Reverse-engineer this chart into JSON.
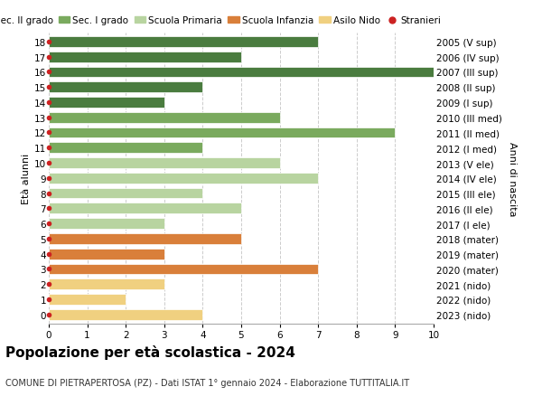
{
  "title": "Popolazione per età scolastica - 2024",
  "subtitle": "COMUNE DI PIETRAPERTOSA (PZ) - Dati ISTAT 1° gennaio 2024 - Elaborazione TUTTITALIA.IT",
  "xlabel_left": "Età alunni",
  "xlabel_right": "Anni di nascita",
  "xlim": [
    0,
    10
  ],
  "xticks": [
    0,
    1,
    2,
    3,
    4,
    5,
    6,
    7,
    8,
    9,
    10
  ],
  "ages": [
    18,
    17,
    16,
    15,
    14,
    13,
    12,
    11,
    10,
    9,
    8,
    7,
    6,
    5,
    4,
    3,
    2,
    1,
    0
  ],
  "right_labels": [
    "2005 (V sup)",
    "2006 (IV sup)",
    "2007 (III sup)",
    "2008 (II sup)",
    "2009 (I sup)",
    "2010 (III med)",
    "2011 (II med)",
    "2012 (I med)",
    "2013 (V ele)",
    "2014 (IV ele)",
    "2015 (III ele)",
    "2016 (II ele)",
    "2017 (I ele)",
    "2018 (mater)",
    "2019 (mater)",
    "2020 (mater)",
    "2021 (nido)",
    "2022 (nido)",
    "2023 (nido)"
  ],
  "values": [
    7,
    5,
    10,
    4,
    3,
    6,
    9,
    4,
    6,
    7,
    4,
    5,
    3,
    5,
    3,
    7,
    3,
    2,
    4
  ],
  "bar_colors": [
    "#4a7c3f",
    "#4a7c3f",
    "#4a7c3f",
    "#4a7c3f",
    "#4a7c3f",
    "#7aaa5e",
    "#7aaa5e",
    "#7aaa5e",
    "#b8d4a0",
    "#b8d4a0",
    "#b8d4a0",
    "#b8d4a0",
    "#b8d4a0",
    "#d97f3a",
    "#d97f3a",
    "#d97f3a",
    "#f0d080",
    "#f0d080",
    "#f0d080"
  ],
  "legend_labels": [
    "Sec. II grado",
    "Sec. I grado",
    "Scuola Primaria",
    "Scuola Infanzia",
    "Asilo Nido",
    "Stranieri"
  ],
  "legend_colors": [
    "#4a7c3f",
    "#7aaa5e",
    "#b8d4a0",
    "#d97f3a",
    "#f0d080",
    "#cc2222"
  ],
  "background_color": "#ffffff",
  "bar_height": 0.7,
  "grid_color": "#cccccc",
  "red_dot_color": "#cc2222",
  "title_fontsize": 11,
  "subtitle_fontsize": 7,
  "legend_fontsize": 7.5,
  "axis_fontsize": 7.5,
  "ylabel_fontsize": 8
}
